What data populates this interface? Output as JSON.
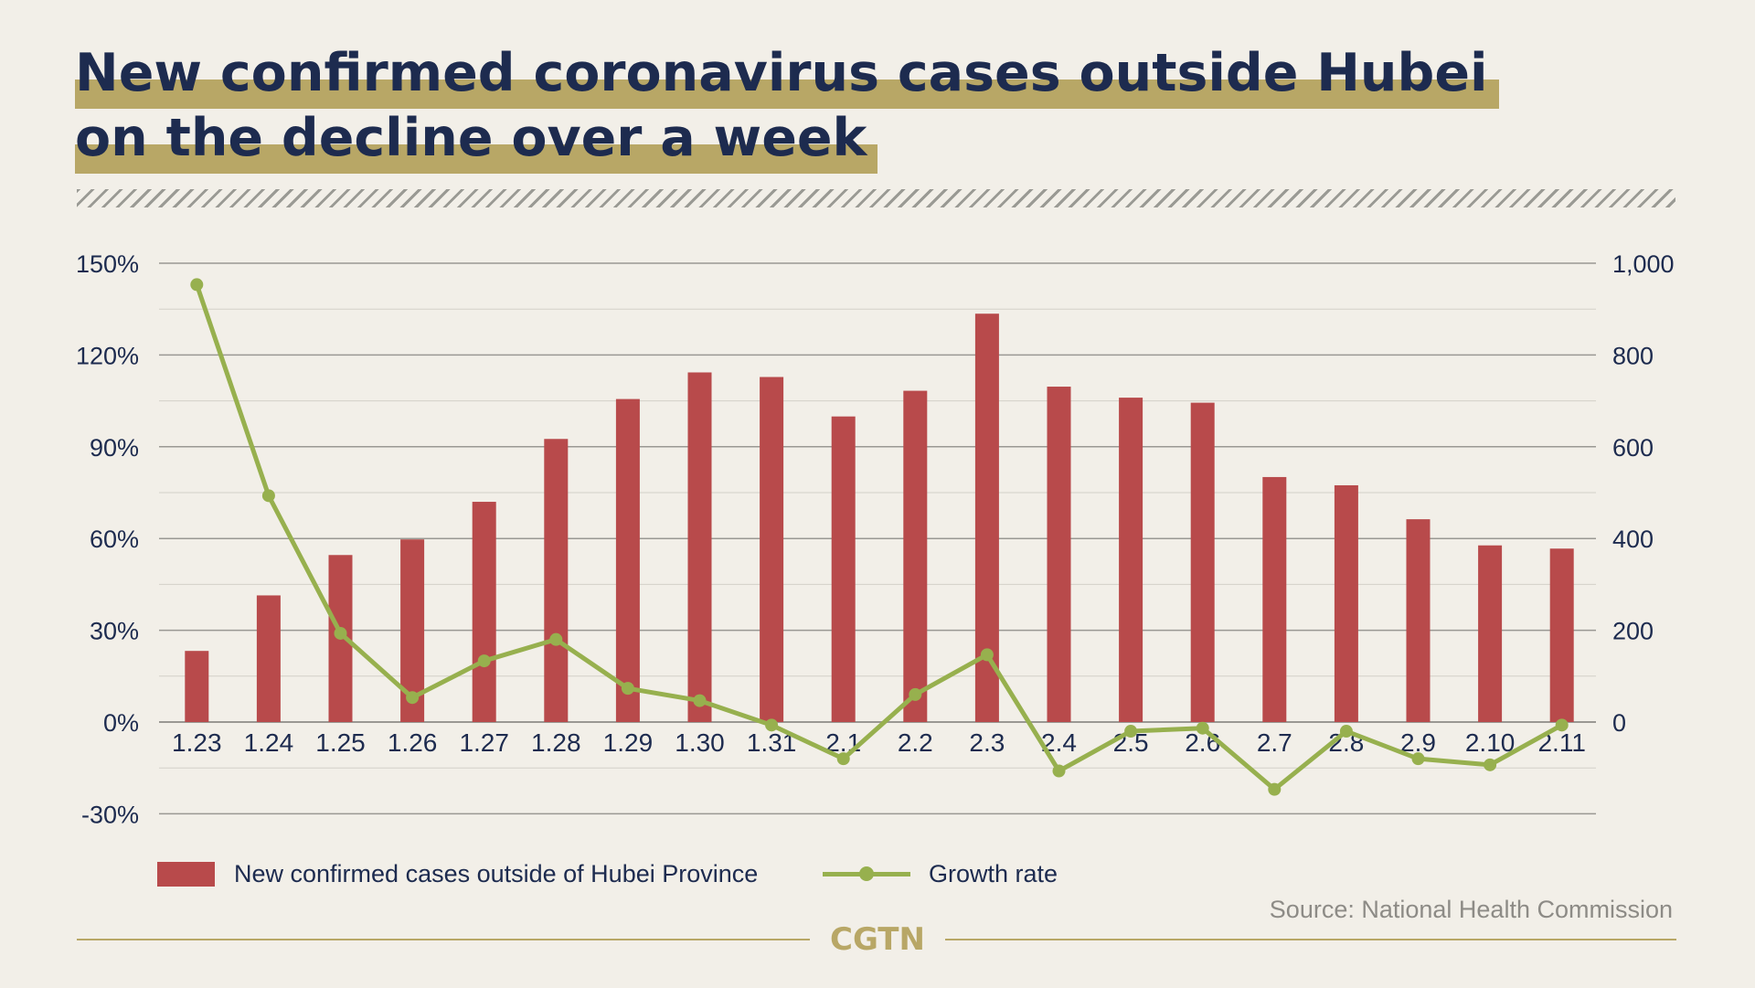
{
  "title": {
    "line1": "New confirmed coronavirus cases outside Hubei",
    "line2": "on the decline over a week"
  },
  "colors": {
    "background": "#f2efe8",
    "title": "#1d2b4f",
    "title_highlight": "#b8a766",
    "bar": "#b84a4b",
    "line": "#97b04e",
    "axis_text": "#1d2b4f",
    "source_text": "#8d8b86",
    "footer": "#b8a766"
  },
  "legend": {
    "bar_label": "New confirmed cases outside of Hubei Province",
    "line_label": "Growth rate"
  },
  "source": "Source: National Health Commission",
  "logo": "CGTN",
  "chart_data": {
    "type": "bar",
    "categories": [
      "1.23",
      "1.24",
      "1.25",
      "1.26",
      "1.27",
      "1.28",
      "1.29",
      "1.30",
      "1.31",
      "2.1",
      "2.2",
      "2.3",
      "2.4",
      "2.5",
      "2.6",
      "2.7",
      "2.8",
      "2.9",
      "2.10",
      "2.11"
    ],
    "series": [
      {
        "name": "New confirmed cases outside of Hubei Province",
        "type": "bar",
        "axis": "right",
        "values": [
          155,
          276,
          364,
          398,
          480,
          617,
          704,
          762,
          752,
          666,
          722,
          890,
          731,
          707,
          696,
          534,
          516,
          442,
          385,
          378
        ]
      },
      {
        "name": "Growth rate",
        "type": "line",
        "axis": "left",
        "values": [
          143,
          74,
          29,
          8,
          20,
          27,
          11,
          7,
          -1,
          -12,
          9,
          22,
          -16,
          -3,
          -2,
          -22,
          -3,
          -12,
          -14,
          -1
        ]
      }
    ],
    "left_axis": {
      "ticks": [
        "150%",
        "120%",
        "90%",
        "60%",
        "30%",
        "0%",
        "-30%"
      ],
      "ylim": [
        -30,
        150
      ],
      "unit": "%"
    },
    "right_axis": {
      "ticks": [
        "1,000",
        "800",
        "600",
        "400",
        "200",
        "0"
      ],
      "ylim": [
        0,
        1000
      ]
    },
    "grid": true,
    "legend_position": "bottom-left"
  }
}
